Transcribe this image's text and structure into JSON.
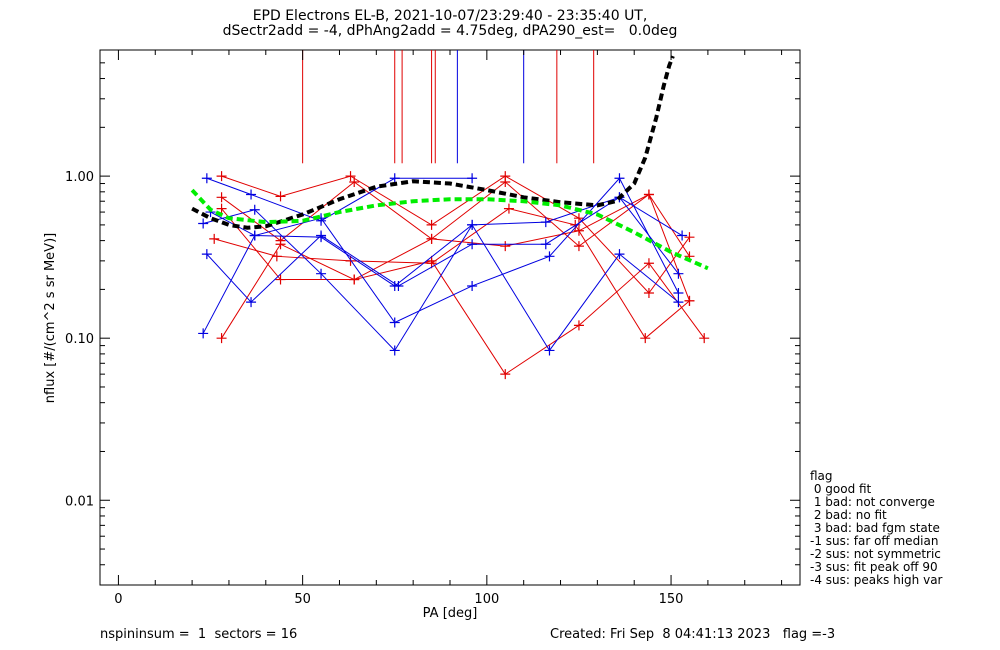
{
  "title": {
    "line1": "EPD Electrons EL-B, 2021-10-07/23:29:40 - 23:35:40 UT,",
    "line2": "dSectr2add = -4, dPhAng2add = 4.75deg, dPA290_est=   0.0deg"
  },
  "footer": {
    "left": "nspininsum =  1  sectors = 16",
    "right": "Created: Fri Sep  8 04:41:13 2023   flag =-3"
  },
  "flag_legend": {
    "title": "flag",
    "items": [
      " 0 good fit",
      " 1 bad: not converge",
      " 2 bad: no fit",
      " 3 bad: bad fgm state",
      "-1 sus: far off median",
      "-2 sus: not symmetric",
      "-3 sus: fit peak off 90",
      "-4 sus: peaks high var"
    ]
  },
  "chart_data": {
    "type": "line",
    "xlabel": "PA [deg]",
    "ylabel": "nflux [#/(cm^2 s sr MeV)]",
    "xlim": [
      -5,
      185
    ],
    "ylim": [
      0.003,
      6
    ],
    "yscale": "log",
    "xticks": [
      0,
      50,
      100,
      150
    ],
    "yticks": [
      {
        "value": 0.01,
        "label": "0.01"
      },
      {
        "value": 0.1,
        "label": "0.10"
      },
      {
        "value": 1.0,
        "label": "1.00"
      }
    ],
    "colors": {
      "red": "#e00000",
      "blue": "#0000e0",
      "black": "#000000",
      "green": "#00ee00"
    },
    "vertical_lines": [
      {
        "x": 50,
        "color": "red"
      },
      {
        "x": 75,
        "color": "red"
      },
      {
        "x": 77,
        "color": "red"
      },
      {
        "x": 85,
        "color": "red"
      },
      {
        "x": 86,
        "color": "red"
      },
      {
        "x": 92,
        "color": "blue"
      },
      {
        "x": 110,
        "color": "blue"
      },
      {
        "x": 119,
        "color": "red"
      },
      {
        "x": 129,
        "color": "red"
      }
    ],
    "vertical_line_ymin": 1.2,
    "series": [
      {
        "color": "red",
        "x": [
          28,
          44,
          63,
          85,
          105,
          125,
          144,
          155
        ],
        "y": [
          1.0,
          0.75,
          1.0,
          0.5,
          1.0,
          0.55,
          0.19,
          0.42
        ]
      },
      {
        "color": "red",
        "x": [
          28,
          44,
          64,
          85,
          105,
          125,
          144,
          159
        ],
        "y": [
          0.1,
          0.38,
          0.23,
          0.3,
          0.06,
          0.12,
          0.29,
          0.1
        ]
      },
      {
        "color": "red",
        "x": [
          26,
          43,
          63,
          85,
          106,
          124,
          143,
          155
        ],
        "y": [
          0.41,
          0.32,
          0.3,
          0.29,
          0.63,
          0.5,
          0.1,
          0.17
        ]
      },
      {
        "color": "red",
        "x": [
          28,
          44,
          64,
          85,
          105,
          125,
          144,
          155
        ],
        "y": [
          0.74,
          0.4,
          0.92,
          0.41,
          0.37,
          0.46,
          0.77,
          0.32
        ]
      },
      {
        "color": "red",
        "x": [
          28,
          44,
          64,
          85,
          105,
          125,
          144,
          155
        ],
        "y": [
          0.63,
          0.23,
          0.23,
          0.41,
          0.92,
          0.37,
          0.77,
          0.17
        ]
      },
      {
        "color": "blue",
        "x": [
          24,
          36,
          55,
          75,
          96,
          116,
          136,
          152
        ],
        "y": [
          0.97,
          0.77,
          0.53,
          0.97,
          0.97,
          null,
          null,
          null
        ]
      },
      {
        "color": "blue",
        "x": [
          23,
          37,
          55,
          75,
          96,
          117,
          136,
          152
        ],
        "y": [
          0.107,
          0.43,
          0.55,
          0.125,
          0.21,
          0.32,
          0.97,
          0.19
        ]
      },
      {
        "color": "blue",
        "x": [
          24,
          36,
          55,
          76,
          96,
          116,
          136,
          152
        ],
        "y": [
          0.33,
          0.167,
          0.43,
          0.21,
          0.38,
          0.38,
          0.74,
          0.25
        ]
      },
      {
        "color": "blue",
        "x": [
          23,
          37,
          55,
          75,
          96,
          117,
          136,
          152
        ],
        "y": [
          0.51,
          0.62,
          0.25,
          0.084,
          0.5,
          0.084,
          0.33,
          0.167
        ]
      },
      {
        "color": "blue",
        "x": [
          25,
          37,
          55,
          75,
          96,
          116,
          136,
          153
        ],
        "y": [
          0.6,
          0.43,
          0.42,
          0.21,
          0.5,
          0.52,
          0.74,
          0.43
        ]
      }
    ],
    "fits": [
      {
        "color": "black",
        "x": [
          20,
          25,
          30,
          35,
          40,
          50,
          60,
          70,
          80,
          90,
          100,
          110,
          120,
          130,
          135,
          140,
          143,
          146,
          148,
          149.5,
          150.5
        ],
        "y": [
          0.63,
          0.55,
          0.5,
          0.48,
          0.49,
          0.58,
          0.72,
          0.86,
          0.93,
          0.9,
          0.82,
          0.74,
          0.69,
          0.66,
          0.7,
          0.9,
          1.3,
          2.3,
          3.6,
          4.8,
          5.5
        ]
      },
      {
        "color": "green",
        "x": [
          20,
          25,
          30,
          40,
          50,
          60,
          70,
          80,
          90,
          100,
          110,
          120,
          130,
          140,
          150,
          160
        ],
        "y": [
          0.82,
          0.62,
          0.55,
          0.52,
          0.53,
          0.6,
          0.66,
          0.7,
          0.72,
          0.72,
          0.7,
          0.66,
          0.58,
          0.45,
          0.34,
          0.27
        ]
      }
    ]
  }
}
